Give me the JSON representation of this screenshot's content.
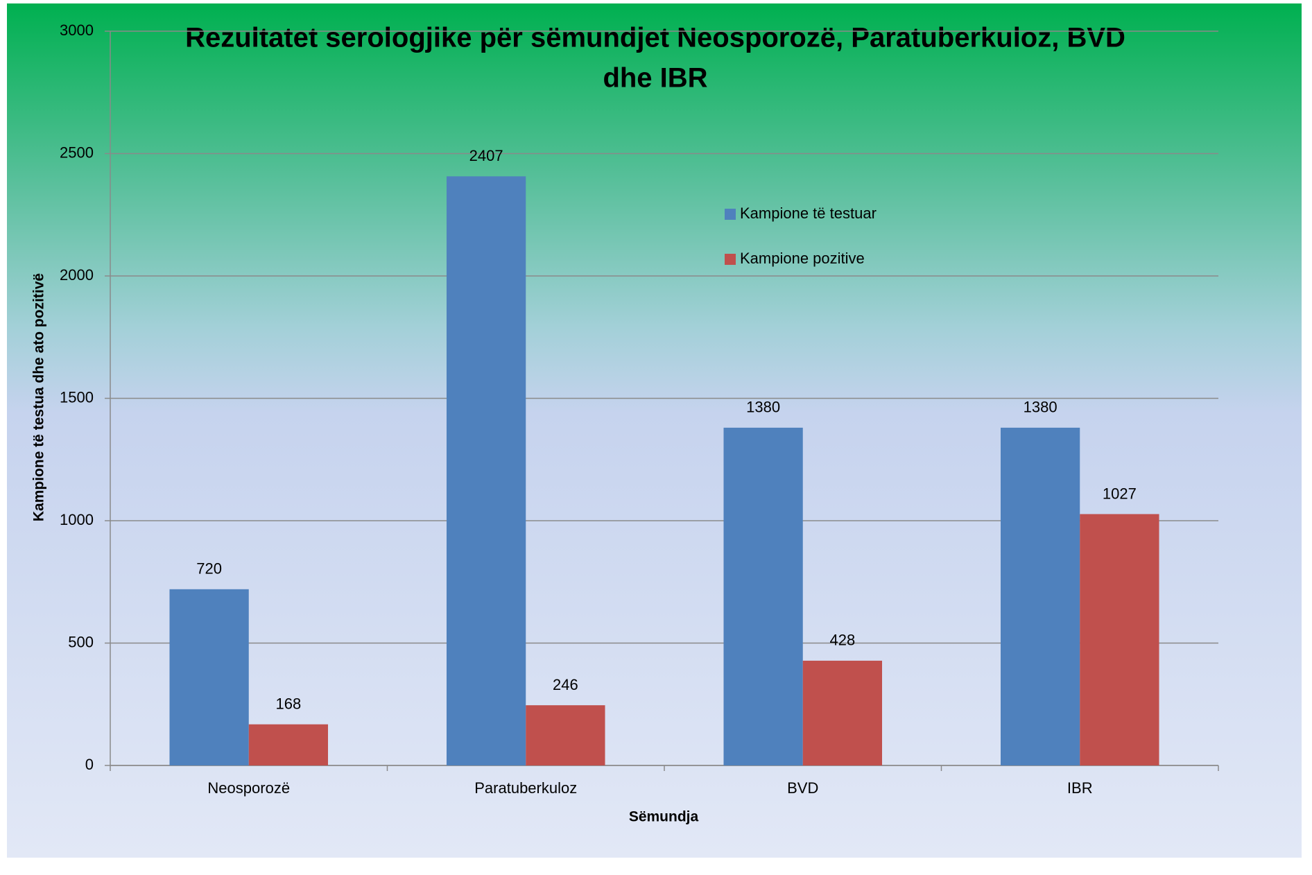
{
  "chart_data": {
    "type": "bar",
    "title": [
      "Rezultatet serologjike për sëmundjet Neosporozë, Paratuberkuloz, BVD",
      "dhe IBR"
    ],
    "x_label": "Sëmundja",
    "y_label": "Kampione të testua dhe ato pozitivë",
    "categories": [
      "Neosporozë",
      "Paratuberkuloz",
      "BVD",
      "IBR"
    ],
    "series": [
      {
        "name": "Kampione të testuar",
        "color": "#4f81bd",
        "values": [
          720,
          2407,
          1380,
          1380
        ]
      },
      {
        "name": "Kampione pozitive",
        "color": "#c0504d",
        "values": [
          168,
          246,
          428,
          1027
        ]
      }
    ],
    "ylim": [
      0,
      3000
    ],
    "yticks": [
      0,
      500,
      1000,
      1500,
      2000,
      2500,
      3000
    ],
    "grid": true
  }
}
